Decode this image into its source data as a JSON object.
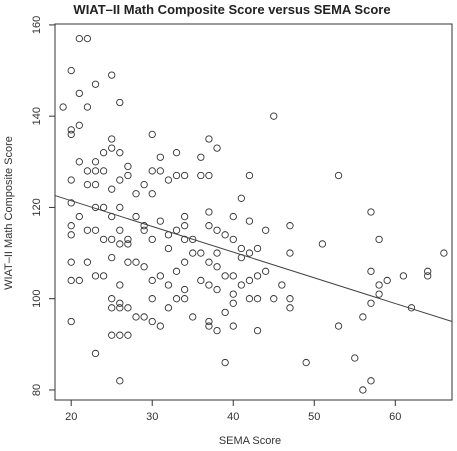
{
  "chart_data": {
    "type": "scatter",
    "title": "WIAT–II Math Composite Score versus SEMA Score",
    "xlabel": "SEMA Score",
    "ylabel": "WIAT–II Math Composite Score",
    "xlim": [
      18,
      67
    ],
    "ylim": [
      77.8,
      160.2
    ],
    "xticks": [
      20,
      30,
      40,
      50,
      60
    ],
    "yticks": [
      80,
      100,
      120,
      140,
      160
    ],
    "grid": false,
    "marker": "open-circle",
    "color": "#333333",
    "trendline": {
      "x": [
        18,
        67
      ],
      "y": [
        122.6,
        95.0
      ]
    },
    "points": [
      [
        20,
        150
      ],
      [
        20,
        137
      ],
      [
        20,
        136
      ],
      [
        19,
        142
      ],
      [
        20,
        126
      ],
      [
        20,
        121
      ],
      [
        20,
        116
      ],
      [
        20,
        114
      ],
      [
        20,
        108
      ],
      [
        20,
        104
      ],
      [
        20,
        95
      ],
      [
        21,
        157
      ],
      [
        21,
        145
      ],
      [
        21,
        138
      ],
      [
        21,
        130
      ],
      [
        21,
        118
      ],
      [
        21,
        104
      ],
      [
        22,
        157
      ],
      [
        22,
        142
      ],
      [
        22,
        128
      ],
      [
        22,
        125
      ],
      [
        22,
        115
      ],
      [
        22,
        108
      ],
      [
        23,
        147
      ],
      [
        23,
        130
      ],
      [
        23,
        128
      ],
      [
        23,
        125
      ],
      [
        23,
        120
      ],
      [
        23,
        115
      ],
      [
        23,
        105
      ],
      [
        23,
        88
      ],
      [
        24,
        132
      ],
      [
        24,
        128
      ],
      [
        24,
        120
      ],
      [
        24,
        113
      ],
      [
        24,
        105
      ],
      [
        25,
        149
      ],
      [
        25,
        135
      ],
      [
        25,
        133
      ],
      [
        25,
        124
      ],
      [
        25,
        118
      ],
      [
        25,
        113
      ],
      [
        25,
        109
      ],
      [
        25,
        100
      ],
      [
        25,
        98
      ],
      [
        25,
        92
      ],
      [
        26,
        143
      ],
      [
        26,
        132
      ],
      [
        26,
        126
      ],
      [
        26,
        120
      ],
      [
        26,
        115
      ],
      [
        26,
        112
      ],
      [
        26,
        103
      ],
      [
        26,
        99
      ],
      [
        26,
        98
      ],
      [
        26,
        92
      ],
      [
        26,
        82
      ],
      [
        27,
        129
      ],
      [
        27,
        127
      ],
      [
        27,
        113
      ],
      [
        27,
        112
      ],
      [
        27,
        108
      ],
      [
        27,
        98
      ],
      [
        27,
        92
      ],
      [
        28,
        123
      ],
      [
        28,
        118
      ],
      [
        28,
        108
      ],
      [
        28,
        96
      ],
      [
        29,
        125
      ],
      [
        29,
        116
      ],
      [
        29,
        115
      ],
      [
        29,
        107
      ],
      [
        29,
        96
      ],
      [
        30,
        136
      ],
      [
        30,
        128
      ],
      [
        30,
        123
      ],
      [
        30,
        113
      ],
      [
        30,
        104
      ],
      [
        30,
        100
      ],
      [
        30,
        95
      ],
      [
        31,
        131
      ],
      [
        31,
        128
      ],
      [
        31,
        117
      ],
      [
        31,
        105
      ],
      [
        31,
        94
      ],
      [
        32,
        126
      ],
      [
        32,
        114
      ],
      [
        32,
        111
      ],
      [
        32,
        103
      ],
      [
        32,
        98
      ],
      [
        33,
        132
      ],
      [
        33,
        127
      ],
      [
        33,
        115
      ],
      [
        33,
        106
      ],
      [
        33,
        100
      ],
      [
        34,
        127
      ],
      [
        34,
        118
      ],
      [
        34,
        116
      ],
      [
        34,
        113
      ],
      [
        34,
        108
      ],
      [
        34,
        102
      ],
      [
        34,
        100
      ],
      [
        35,
        113
      ],
      [
        35,
        110
      ],
      [
        35,
        96
      ],
      [
        36,
        131
      ],
      [
        36,
        127
      ],
      [
        36,
        110
      ],
      [
        36,
        104
      ],
      [
        37,
        135
      ],
      [
        37,
        127
      ],
      [
        37,
        119
      ],
      [
        37,
        116
      ],
      [
        37,
        108
      ],
      [
        37,
        103
      ],
      [
        37,
        95
      ],
      [
        37,
        94
      ],
      [
        38,
        133
      ],
      [
        38,
        115
      ],
      [
        38,
        110
      ],
      [
        38,
        107
      ],
      [
        38,
        102
      ],
      [
        38,
        93
      ],
      [
        39,
        114
      ],
      [
        39,
        105
      ],
      [
        39,
        97
      ],
      [
        39,
        86
      ],
      [
        40,
        118
      ],
      [
        40,
        113
      ],
      [
        40,
        105
      ],
      [
        40,
        101
      ],
      [
        40,
        99
      ],
      [
        40,
        94
      ],
      [
        41,
        122
      ],
      [
        41,
        111
      ],
      [
        41,
        109
      ],
      [
        41,
        103
      ],
      [
        42,
        127
      ],
      [
        42,
        117
      ],
      [
        42,
        110
      ],
      [
        42,
        104
      ],
      [
        42,
        100
      ],
      [
        43,
        111
      ],
      [
        43,
        105
      ],
      [
        43,
        100
      ],
      [
        43,
        93
      ],
      [
        44,
        115
      ],
      [
        44,
        106
      ],
      [
        45,
        140
      ],
      [
        45,
        100
      ],
      [
        46,
        103
      ],
      [
        47,
        116
      ],
      [
        47,
        110
      ],
      [
        47,
        100
      ],
      [
        47,
        98
      ],
      [
        49,
        86
      ],
      [
        51,
        112
      ],
      [
        53,
        127
      ],
      [
        53,
        94
      ],
      [
        55,
        87
      ],
      [
        56,
        96
      ],
      [
        56,
        80
      ],
      [
        57,
        119
      ],
      [
        57,
        106
      ],
      [
        57,
        99
      ],
      [
        57,
        82
      ],
      [
        58,
        113
      ],
      [
        58,
        103
      ],
      [
        58,
        101
      ],
      [
        59,
        104
      ],
      [
        61,
        105
      ],
      [
        62,
        98
      ],
      [
        64,
        106
      ],
      [
        64,
        105
      ],
      [
        66,
        110
      ]
    ]
  }
}
